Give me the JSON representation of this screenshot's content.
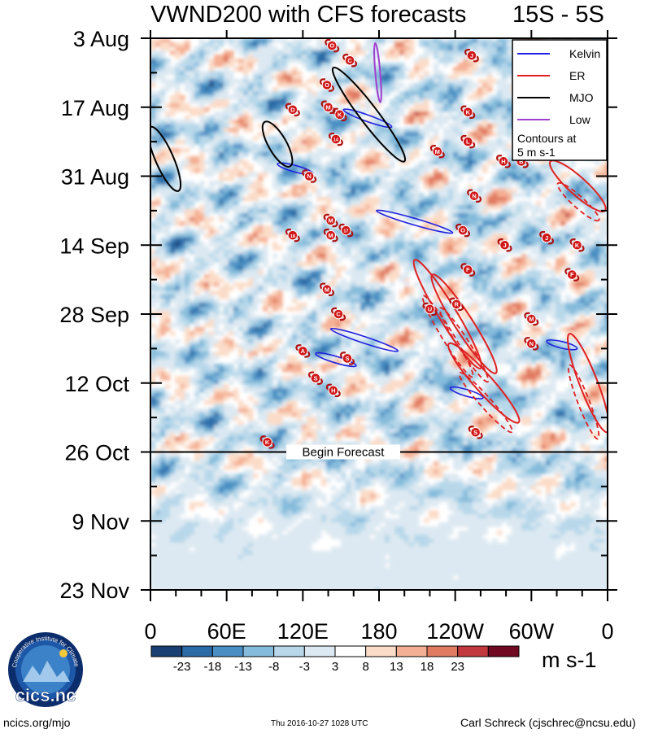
{
  "header": {
    "title": "VWND200 with CFS forecasts",
    "region": "15S - 5S"
  },
  "chart_data": {
    "type": "heatmap",
    "title": "VWND200 with CFS forecasts",
    "subtitle": "15S - 5S",
    "y_tick_labels": [
      "3 Aug",
      "17 Aug",
      "31 Aug",
      "14 Sep",
      "28 Sep",
      "12 Oct",
      "26 Oct",
      "9 Nov",
      "23 Nov"
    ],
    "x_tick_labels": [
      "0",
      "60E",
      "120E",
      "180",
      "120W",
      "60W",
      "0"
    ],
    "x_range_deg_east": [
      0,
      360
    ],
    "y_range_days": [
      0,
      112
    ],
    "colorbar": {
      "unit": "m s-1",
      "levels": [
        -23,
        -18,
        -13,
        -8,
        -3,
        3,
        8,
        13,
        18,
        23
      ],
      "level_labels": [
        "-23",
        "-18",
        "-13",
        "-8",
        "-3",
        "3",
        "8",
        "13",
        "18",
        "23"
      ],
      "colors": [
        "#1a3f73",
        "#2a6aa6",
        "#4a8fc3",
        "#86bcdb",
        "#b8d8ea",
        "#dde9f2",
        "#ffffff",
        "#fbdcc8",
        "#f4b094",
        "#e07a60",
        "#c1383d",
        "#6f0a22"
      ]
    },
    "legend": {
      "position": "top-right",
      "entries": [
        {
          "label": "Kelvin",
          "color": "#2020e0"
        },
        {
          "label": "ER",
          "color": "#e02020"
        },
        {
          "label": "MJO",
          "color": "#000000"
        },
        {
          "label": "Low",
          "color": "#a040d0"
        }
      ],
      "note": "Contours at 5 m s-1"
    },
    "forecast_marker": {
      "day": 84,
      "label": "Begin Forecast"
    },
    "storms": [
      {
        "label": "O",
        "lon": 143,
        "day": 1.5
      },
      {
        "label": "C",
        "lon": 157,
        "day": 4.5
      },
      {
        "label": "J",
        "lon": 253,
        "day": 3.5
      },
      {
        "label": "O",
        "lon": 139,
        "day": 9.5
      },
      {
        "label": "M",
        "lon": 140,
        "day": 14
      },
      {
        "label": "K",
        "lon": 149,
        "day": 15.5
      },
      {
        "label": "D",
        "lon": 112,
        "day": 14.5
      },
      {
        "label": "K",
        "lon": 250,
        "day": 15
      },
      {
        "label": "L",
        "lon": 250,
        "day": 21
      },
      {
        "label": "M",
        "lon": 226,
        "day": 23
      },
      {
        "label": "14",
        "lon": 146,
        "day": 20.5
      },
      {
        "label": "N",
        "lon": 125,
        "day": 28
      },
      {
        "label": "H",
        "lon": 278,
        "day": 25
      },
      {
        "label": "B",
        "lon": 292,
        "day": 25
      },
      {
        "label": "N",
        "lon": 255,
        "day": 32
      },
      {
        "label": "M",
        "lon": 142,
        "day": 37
      },
      {
        "label": "18",
        "lon": 112,
        "day": 40
      },
      {
        "label": "M",
        "lon": 142,
        "day": 40
      },
      {
        "label": "17",
        "lon": 154,
        "day": 39
      },
      {
        "label": "O",
        "lon": 246,
        "day": 39
      },
      {
        "label": "J",
        "lon": 312,
        "day": 40.5
      },
      {
        "label": "K",
        "lon": 336,
        "day": 42
      },
      {
        "label": "J",
        "lon": 279,
        "day": 42
      },
      {
        "label": "F",
        "lon": 250,
        "day": 47
      },
      {
        "label": "F",
        "lon": 332,
        "day": 48
      },
      {
        "label": "M",
        "lon": 139,
        "day": 51
      },
      {
        "label": "U",
        "lon": 220,
        "day": 55
      },
      {
        "label": "R",
        "lon": 241,
        "day": 54
      },
      {
        "label": "C",
        "lon": 148,
        "day": 56
      },
      {
        "label": "M",
        "lon": 300,
        "day": 57
      },
      {
        "label": "N",
        "lon": 300,
        "day": 62
      },
      {
        "label": "A",
        "lon": 120,
        "day": 63.5
      },
      {
        "label": "S",
        "lon": 155,
        "day": 65
      },
      {
        "label": "S",
        "lon": 130,
        "day": 69
      },
      {
        "label": "H",
        "lon": 144,
        "day": 71.5
      },
      {
        "label": "S",
        "lon": 256,
        "day": 80
      },
      {
        "label": "K",
        "lon": 92,
        "day": 82
      }
    ],
    "wave_contours": [
      {
        "type": "Kelvin",
        "lon": [
          100,
          128
        ],
        "day": [
          25.5,
          27.5
        ]
      },
      {
        "type": "Kelvin",
        "lon": [
          152,
          190
        ],
        "day": [
          14.5,
          18
        ]
      },
      {
        "type": "Kelvin",
        "lon": [
          178,
          238
        ],
        "day": [
          35,
          39.5
        ]
      },
      {
        "type": "Kelvin",
        "lon": [
          142,
          195
        ],
        "day": [
          59,
          63.5
        ]
      },
      {
        "type": "Kelvin",
        "lon": [
          130,
          162
        ],
        "day": [
          64,
          66.5
        ]
      },
      {
        "type": "Kelvin",
        "lon": [
          236,
          262
        ],
        "day": [
          71,
          73
        ]
      },
      {
        "type": "Kelvin",
        "lon": [
          312,
          336
        ],
        "day": [
          61.5,
          63
        ]
      },
      {
        "type": "MJO",
        "lon": [
          144,
          200
        ],
        "day": [
          6,
          25
        ]
      },
      {
        "type": "MJO",
        "lon": [
          90,
          110
        ],
        "day": [
          17,
          26
        ]
      },
      {
        "type": "MJO",
        "lon": [
          0,
          22
        ],
        "day": [
          18,
          31
        ]
      },
      {
        "type": "Low",
        "lon": [
          177,
          181
        ],
        "day": [
          1,
          13
        ]
      },
      {
        "type": "ER",
        "lon": [
          208,
          260
        ],
        "day": [
          45,
          67
        ]
      },
      {
        "type": "ER",
        "lon": [
          222,
          272
        ],
        "day": [
          48,
          68
        ]
      },
      {
        "type": "ER",
        "lon": [
          235,
          290
        ],
        "day": [
          62,
          78
        ]
      },
      {
        "type": "ER",
        "lon": [
          315,
          358
        ],
        "day": [
          25,
          35
        ]
      },
      {
        "type": "ER",
        "lon": [
          330,
          360
        ],
        "day": [
          60,
          80
        ]
      }
    ]
  },
  "footer": {
    "logo_text": "cics.nc",
    "logo_ring_text": "Cooperative Institute for Climate and Satellites",
    "site": "ncics.org/mjo",
    "timestamp": "Thu 2016-10-27 1028 UTC",
    "author": "Carl Schreck (cjschrec@ncsu.edu)"
  }
}
